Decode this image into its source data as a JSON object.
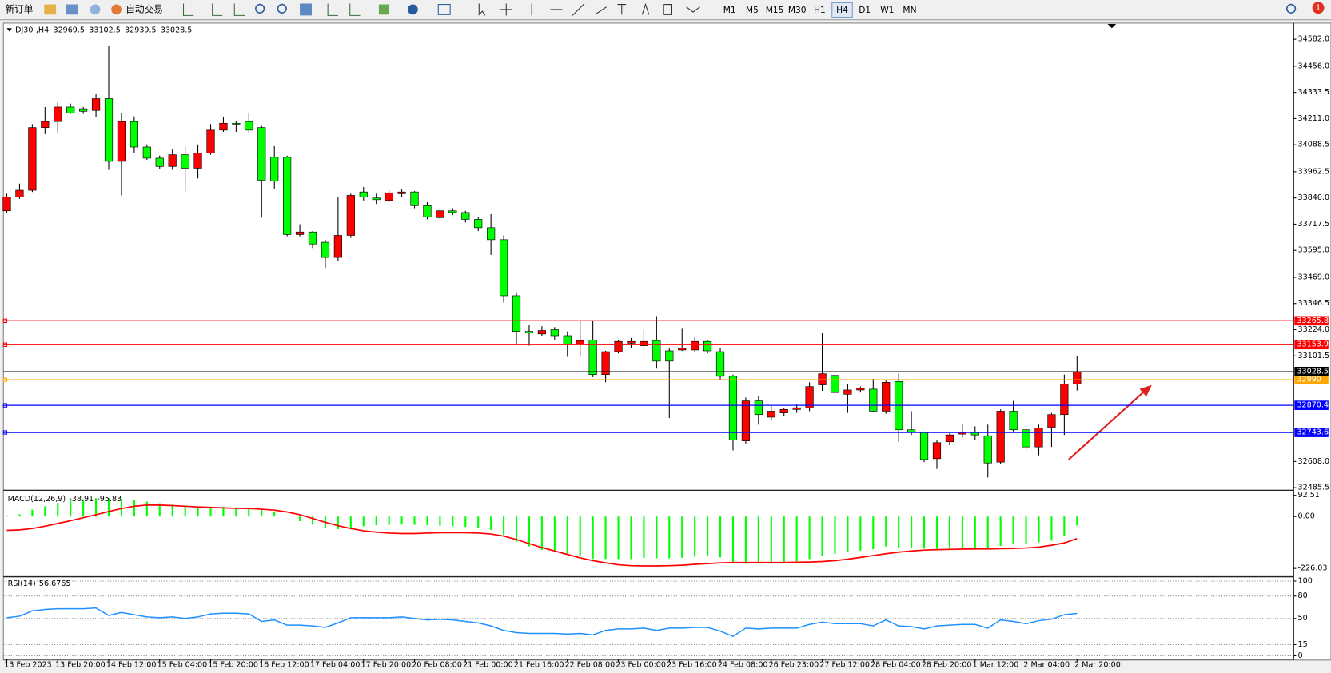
{
  "toolbar": {
    "new_order": "新订单",
    "auto_trading": "自动交易",
    "timeframes": [
      "M1",
      "M5",
      "M15",
      "M30",
      "H1",
      "H4",
      "D1",
      "W1",
      "MN"
    ],
    "active_timeframe": "H4",
    "notifications": 1
  },
  "chart_data": [
    {
      "type": "candlestick",
      "symbol_label": "DJ30-,H4",
      "categories": [
        "13 Feb 2023",
        null,
        null,
        null,
        "13 Feb 20:00",
        null,
        null,
        null,
        "14 Feb 12:00",
        null,
        null,
        null,
        "15 Feb 04:00",
        null,
        null,
        null,
        "15 Feb 20:00",
        null,
        null,
        null,
        "16 Feb 12:00",
        null,
        null,
        null,
        "17 Feb 04:00",
        null,
        null,
        null,
        "17 Feb 20:00",
        null,
        null,
        null,
        "20 Feb 08:00",
        null,
        null,
        null,
        "21 Feb 00:00",
        null,
        null,
        null,
        "21 Feb 16:00",
        null,
        null,
        null,
        "22 Feb 08:00",
        null,
        null,
        null,
        "23 Feb 00:00",
        null,
        null,
        null,
        "23 Feb 16:00",
        null,
        null,
        null,
        "24 Feb 08:00",
        null,
        null,
        null,
        "26 Feb 23:00",
        null,
        null,
        null,
        "27 Feb 12:00",
        null,
        null,
        null,
        "28 Feb 04:00",
        null,
        null,
        null,
        "28 Feb 20:00",
        null,
        null,
        null,
        "1 Mar 12:00",
        null,
        null,
        null,
        "2 Mar 04:00",
        null,
        null,
        null,
        "2 Mar 20:00"
      ],
      "open": [
        33780,
        33844,
        33876,
        34169,
        34197,
        34265,
        34257,
        34249,
        34304,
        34011,
        34197,
        34078,
        34026,
        33987,
        34042,
        33979,
        34050,
        34157,
        34189,
        34197,
        34169,
        34030,
        34030,
        33669,
        33681,
        33633,
        33562,
        33665,
        33868,
        33840,
        33828,
        33860,
        33868,
        33804,
        33748,
        33780,
        33772,
        33740,
        33701,
        33645,
        33383,
        33216,
        33204,
        33224,
        33196,
        33157,
        33176,
        33014,
        33121,
        33161,
        33149,
        33173,
        33125,
        33129,
        33129,
        33169,
        33121,
        33006,
        32704,
        32891,
        32815,
        32835,
        32851,
        32859,
        32966,
        33010,
        32922,
        32942,
        32946,
        32843,
        32982,
        32756,
        32744,
        32621,
        32700,
        32736,
        32744,
        32728,
        32605,
        32843,
        32756,
        32676,
        32768,
        32827,
        32969.5
      ],
      "high": [
        33860,
        33907,
        34185,
        34265,
        34289,
        34281,
        34265,
        34328,
        34551,
        34237,
        34221,
        34090,
        34038,
        34070,
        34082,
        34090,
        34185,
        34217,
        34201,
        34237,
        34177,
        34082,
        34038,
        33717,
        33685,
        33645,
        33844,
        33860,
        33891,
        33860,
        33876,
        33880,
        33872,
        33820,
        33788,
        33792,
        33780,
        33752,
        33764,
        33665,
        33399,
        33248,
        33240,
        33236,
        33216,
        33264,
        33264,
        33125,
        33176,
        33185,
        33224,
        33288,
        33137,
        33232,
        33192,
        33176,
        33137,
        33014,
        32907,
        32915,
        32867,
        32859,
        32875,
        32978,
        33208,
        33030,
        32970,
        32958,
        32994,
        32986,
        33018,
        32843,
        32748,
        32708,
        32740,
        32780,
        32772,
        32780,
        32851,
        32891,
        32764,
        32780,
        32835,
        33014,
        33102.5
      ],
      "low": [
        33772,
        33836,
        33868,
        34138,
        34146,
        34233,
        34233,
        34217,
        33971,
        33852,
        34050,
        34018,
        33975,
        33971,
        33871,
        33931,
        34042,
        34149,
        34149,
        34146,
        33748,
        33883,
        33661,
        33661,
        33606,
        33514,
        33546,
        33653,
        33828,
        33812,
        33820,
        33844,
        33792,
        33740,
        33740,
        33760,
        33725,
        33685,
        33574,
        33351,
        33153,
        33149,
        33196,
        33176,
        33097,
        33097,
        33002,
        32978,
        33113,
        33137,
        33129,
        33042,
        32811,
        33125,
        33121,
        33113,
        32990,
        32660,
        32692,
        32780,
        32799,
        32819,
        32835,
        32843,
        32938,
        32891,
        32835,
        32930,
        32839,
        32831,
        32700,
        32732,
        32605,
        32573,
        32684,
        32720,
        32708,
        32533,
        32597,
        32748,
        32660,
        32637,
        32676,
        32732,
        32939.5
      ],
      "close": [
        33844,
        33876,
        34169,
        34197,
        34265,
        34237,
        34245,
        34304,
        34011,
        34197,
        34078,
        34026,
        33987,
        34042,
        33979,
        34050,
        34157,
        34189,
        34185,
        34157,
        33923,
        33919,
        33669,
        33681,
        33625,
        33562,
        33665,
        33852,
        33844,
        33832,
        33864,
        33868,
        33804,
        33752,
        33780,
        33772,
        33740,
        33701,
        33645,
        33383,
        33216,
        33208,
        33220,
        33196,
        33157,
        33173,
        33014,
        33121,
        33169,
        33169,
        33169,
        33077,
        33077,
        33137,
        33169,
        33125,
        33006,
        32708,
        32891,
        32827,
        32843,
        32851,
        32859,
        32958,
        33018,
        32930,
        32942,
        32950,
        32843,
        32978,
        32756,
        32744,
        32617,
        32696,
        32732,
        32744,
        32732,
        32601,
        32843,
        32756,
        32676,
        32764,
        32827,
        32970,
        33028.5
      ],
      "up_color": "#ff0000",
      "down_color": "#00ff00",
      "levels": [
        {
          "value": 33265.8,
          "color": "#ff0000"
        },
        {
          "value": 33153.9,
          "color": "#ff0000"
        },
        {
          "value": 32990,
          "color": "#ffa500"
        },
        {
          "value": 32870.4,
          "color": "#0000ff"
        },
        {
          "value": 32743.6,
          "color": "#0000ff"
        }
      ],
      "ylim": [
        32477.5,
        34653.5
      ],
      "yticks": [
        {
          "value": 34582,
          "label": "34582.0"
        },
        {
          "value": 34456,
          "label": "34456.0"
        },
        34333.5,
        {
          "value": 34211,
          "label": "34211.0"
        },
        34088.5,
        33962.5,
        {
          "value": 33840,
          "label": "33840.0"
        },
        33717.5,
        {
          "value": 33595,
          "label": "33595.0"
        },
        {
          "value": 33469,
          "label": "33469.0"
        },
        33346.5,
        {
          "value": 33224,
          "label": "33224.0"
        },
        33101.5,
        {
          "value": 32608,
          "label": "32608.0"
        },
        32485.5
      ]
    },
    {
      "type": "macd",
      "label": "MACD(12,26,9)",
      "values": [
        5,
        10,
        30,
        45,
        60,
        70,
        75,
        80,
        80,
        78,
        72,
        65,
        58,
        52,
        46,
        42,
        42,
        42,
        40,
        38,
        30,
        22,
        0,
        -20,
        -35,
        -50,
        -55,
        -48,
        -42,
        -38,
        -36,
        -35,
        -36,
        -38,
        -40,
        -42,
        -45,
        -50,
        -58,
        -80,
        -110,
        -130,
        -145,
        -155,
        -165,
        -170,
        -185,
        -185,
        -185,
        -185,
        -180,
        -182,
        -182,
        -180,
        -175,
        -172,
        -178,
        -200,
        -205,
        -205,
        -205,
        -200,
        -195,
        -185,
        -170,
        -162,
        -155,
        -148,
        -142,
        -130,
        -135,
        -135,
        -140,
        -140,
        -140,
        -138,
        -135,
        -140,
        -128,
        -122,
        -118,
        -112,
        -105,
        -85,
        -38.91
      ],
      "signal": [
        -60,
        -58,
        -52,
        -42,
        -30,
        -18,
        -5,
        8,
        22,
        35,
        45,
        50,
        50,
        48,
        45,
        42,
        40,
        38,
        36,
        35,
        32,
        28,
        20,
        8,
        -8,
        -25,
        -40,
        -52,
        -62,
        -68,
        -72,
        -74,
        -74,
        -72,
        -70,
        -70,
        -70,
        -72,
        -76,
        -85,
        -100,
        -118,
        -135,
        -150,
        -165,
        -180,
        -192,
        -202,
        -210,
        -214,
        -215,
        -215,
        -214,
        -212,
        -208,
        -205,
        -202,
        -200,
        -200,
        -200,
        -200,
        -200,
        -199,
        -198,
        -196,
        -192,
        -186,
        -178,
        -170,
        -162,
        -155,
        -150,
        -146,
        -144,
        -143,
        -142,
        -141,
        -141,
        -140,
        -139,
        -137,
        -133,
        -125,
        -115,
        -95.83
      ],
      "color": "#00ff00",
      "signal_color": "#ff0000",
      "ylim": [
        -248,
        111
      ],
      "yticks": [
        92.51,
        {
          "value": 0,
          "label": "0.00"
        },
        -226.03
      ]
    },
    {
      "type": "line",
      "label": "RSI(14)",
      "values": [
        51,
        53,
        60,
        62,
        63,
        63,
        63,
        64,
        54,
        58,
        55,
        52,
        51,
        52,
        50,
        52,
        56,
        57,
        57,
        56,
        46,
        48,
        41,
        41,
        40,
        38,
        44,
        51,
        51,
        51,
        51,
        52,
        50,
        48,
        49,
        48,
        46,
        44,
        40,
        34,
        31,
        30,
        30,
        30,
        29,
        30,
        28,
        34,
        36,
        36,
        37,
        34,
        37,
        37,
        38,
        38,
        33,
        26,
        37,
        36,
        37,
        37,
        37,
        42,
        45,
        43,
        43,
        43,
        40,
        48,
        40,
        39,
        36,
        40,
        41,
        42,
        42,
        37,
        48,
        46,
        43,
        47,
        49,
        55,
        56.6765
      ],
      "color": "#1e90ff",
      "ylim": [
        0,
        100
      ],
      "yticks": [
        100,
        80,
        50,
        15,
        0
      ],
      "grid": true
    }
  ]
}
